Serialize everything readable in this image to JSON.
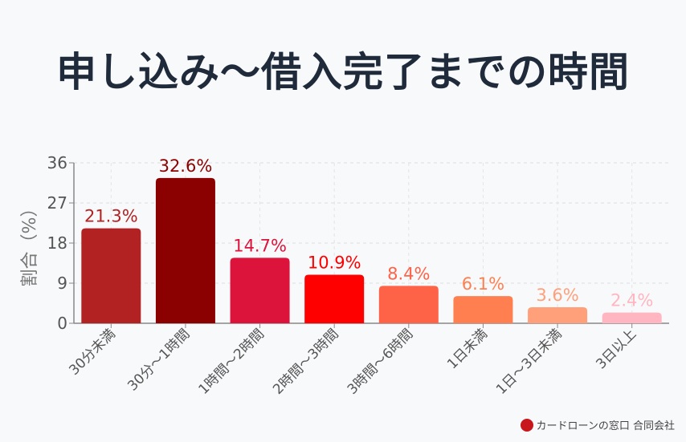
{
  "chart_data": {
    "type": "bar",
    "title": "申し込み～借入完了までの時間",
    "xlabel": "",
    "ylabel": "割合（%）",
    "ylim": [
      0,
      36
    ],
    "yticks": [
      0,
      9,
      18,
      27,
      36
    ],
    "grid": true,
    "categories": [
      "30分未満",
      "30分～1時間",
      "1時間～2時間",
      "2時間～3時間",
      "3時間～6時間",
      "1日未満",
      "1日～3日未満",
      "3日以上"
    ],
    "values": [
      21.3,
      32.6,
      14.7,
      10.9,
      8.4,
      6.1,
      3.6,
      2.4
    ],
    "data_labels": [
      "21.3%",
      "32.6%",
      "14.7%",
      "10.9%",
      "8.4%",
      "6.1%",
      "3.6%",
      "2.4%"
    ],
    "colors": [
      "#B22222",
      "#8B0000",
      "#DC143C",
      "#FF0000",
      "#FF6347",
      "#FF7F50",
      "#FFA07A",
      "#FFB6C1"
    ]
  },
  "credit": "カードローンの窓口 合同会社"
}
